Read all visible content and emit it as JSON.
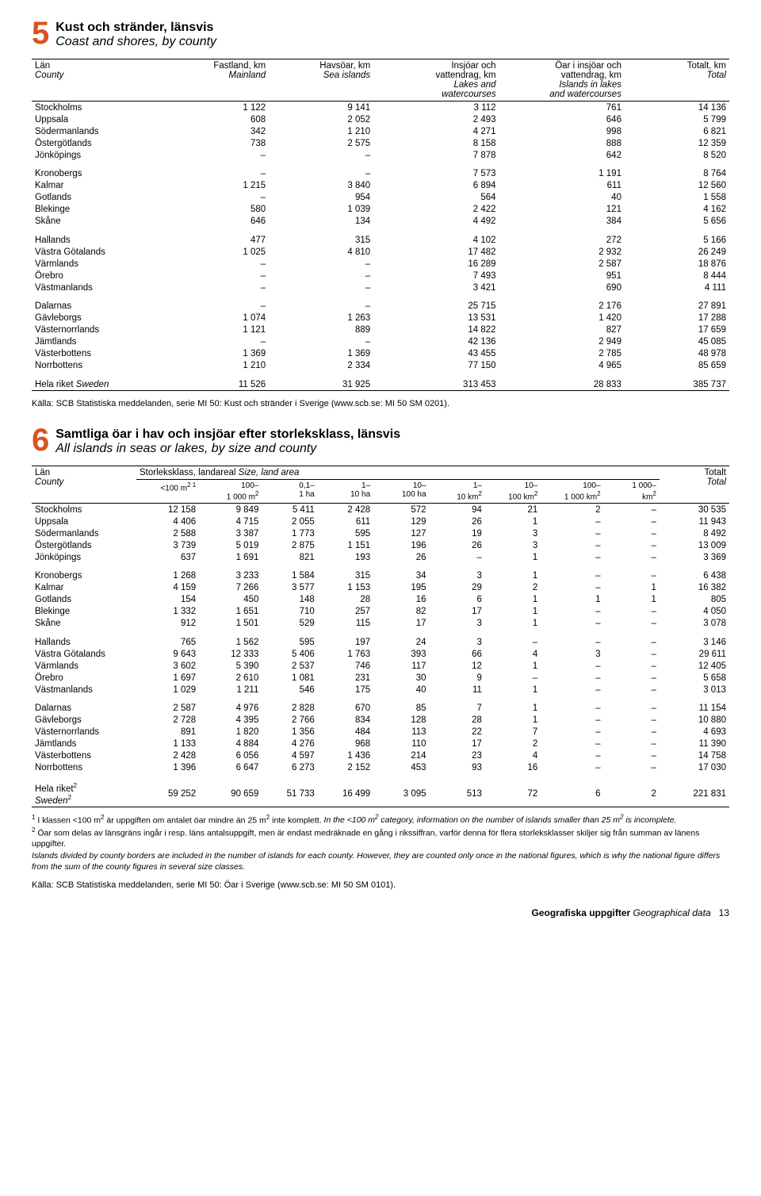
{
  "table5": {
    "number": "5",
    "title_sv": "Kust och stränder, länsvis",
    "title_en": "Coast and shores, by county",
    "headers": {
      "c0a": "Län",
      "c0b": "County",
      "c1a": "Fastland, km",
      "c1b": "Mainland",
      "c2a": "Havsöar, km",
      "c2b": "Sea islands",
      "c3a": "Insjöar och",
      "c3b": "vattendrag, km",
      "c3c": "Lakes and",
      "c3d": "watercourses",
      "c4a": "Öar i insjöar och",
      "c4b": "vattendrag, km",
      "c4c": "Islands in lakes",
      "c4d": "and watercourses",
      "c5a": "Totalt, km",
      "c5b": "Total"
    },
    "groups": [
      [
        {
          "n": "Stockholms",
          "v": [
            "1 122",
            "9 141",
            "3 112",
            "761",
            "14 136"
          ]
        },
        {
          "n": "Uppsala",
          "v": [
            "608",
            "2 052",
            "2 493",
            "646",
            "5 799"
          ]
        },
        {
          "n": "Södermanlands",
          "v": [
            "342",
            "1 210",
            "4 271",
            "998",
            "6 821"
          ]
        },
        {
          "n": "Östergötlands",
          "v": [
            "738",
            "2 575",
            "8 158",
            "888",
            "12 359"
          ]
        },
        {
          "n": "Jönköpings",
          "v": [
            "–",
            "–",
            "7 878",
            "642",
            "8 520"
          ]
        }
      ],
      [
        {
          "n": "Kronobergs",
          "v": [
            "–",
            "–",
            "7 573",
            "1 191",
            "8 764"
          ]
        },
        {
          "n": "Kalmar",
          "v": [
            "1 215",
            "3 840",
            "6 894",
            "611",
            "12 560"
          ]
        },
        {
          "n": "Gotlands",
          "v": [
            "–",
            "954",
            "564",
            "40",
            "1 558"
          ]
        },
        {
          "n": "Blekinge",
          "v": [
            "580",
            "1 039",
            "2 422",
            "121",
            "4 162"
          ]
        },
        {
          "n": "Skåne",
          "v": [
            "646",
            "134",
            "4 492",
            "384",
            "5 656"
          ]
        }
      ],
      [
        {
          "n": "Hallands",
          "v": [
            "477",
            "315",
            "4 102",
            "272",
            "5 166"
          ]
        },
        {
          "n": "Västra Götalands",
          "v": [
            "1 025",
            "4 810",
            "17 482",
            "2 932",
            "26 249"
          ]
        },
        {
          "n": "Värmlands",
          "v": [
            "–",
            "–",
            "16 289",
            "2 587",
            "18 876"
          ]
        },
        {
          "n": "Örebro",
          "v": [
            "–",
            "–",
            "7 493",
            "951",
            "8 444"
          ]
        },
        {
          "n": "Västmanlands",
          "v": [
            "–",
            "–",
            "3 421",
            "690",
            "4 111"
          ]
        }
      ],
      [
        {
          "n": "Dalarnas",
          "v": [
            "–",
            "–",
            "25 715",
            "2 176",
            "27 891"
          ]
        },
        {
          "n": "Gävleborgs",
          "v": [
            "1 074",
            "1 263",
            "13 531",
            "1 420",
            "17 288"
          ]
        },
        {
          "n": "Västernorrlands",
          "v": [
            "1 121",
            "889",
            "14 822",
            "827",
            "17 659"
          ]
        },
        {
          "n": "Jämtlands",
          "v": [
            "–",
            "–",
            "42 136",
            "2 949",
            "45 085"
          ]
        },
        {
          "n": "Västerbottens",
          "v": [
            "1 369",
            "1 369",
            "43 455",
            "2 785",
            "48 978"
          ]
        },
        {
          "n": "Norrbottens",
          "v": [
            "1 210",
            "2 334",
            "77 150",
            "4 965",
            "85 659"
          ]
        }
      ]
    ],
    "total": {
      "n": "Hela riket",
      "ni": "Sweden",
      "v": [
        "11 526",
        "31 925",
        "313 453",
        "28 833",
        "385 737"
      ]
    },
    "source": "Källa: SCB Statistiska meddelanden, serie MI 50: Kust och stränder i Sverige (www.scb.se: MI 50 SM 0201)."
  },
  "table6": {
    "number": "6",
    "title_sv": "Samtliga öar i hav och insjöar efter storleksklass, länsvis",
    "title_en": "All islands in seas or lakes, by size and county",
    "head": {
      "l0a": "Län",
      "l0b": "County",
      "span_sv": "Storleksklass, landareal",
      "span_en": "Size, land area",
      "ta": "Totalt",
      "tb": "Total",
      "c1a": "<100 m",
      "c1s": "2 1",
      "c2a": "100–",
      "c2b": "1 000 m",
      "c2s": "2",
      "c3a": "0,1–",
      "c3b": "1 ha",
      "c4a": "1–",
      "c4b": "10 ha",
      "c5a": "10–",
      "c5b": "100 ha",
      "c6a": "1–",
      "c6b": "10 km",
      "c6s": "2",
      "c7a": "10–",
      "c7b": "100 km",
      "c7s": "2",
      "c8a": "100–",
      "c8b": "1 000 km",
      "c8s": "2",
      "c9a": "1 000–",
      "c9b": "km",
      "c9s": "2"
    },
    "groups": [
      [
        {
          "n": "Stockholms",
          "v": [
            "12 158",
            "9 849",
            "5 411",
            "2 428",
            "572",
            "94",
            "21",
            "2",
            "–",
            "30 535"
          ]
        },
        {
          "n": "Uppsala",
          "v": [
            "4 406",
            "4 715",
            "2 055",
            "611",
            "129",
            "26",
            "1",
            "–",
            "–",
            "11 943"
          ]
        },
        {
          "n": "Södermanlands",
          "v": [
            "2 588",
            "3 387",
            "1 773",
            "595",
            "127",
            "19",
            "3",
            "–",
            "–",
            "8 492"
          ]
        },
        {
          "n": "Östergötlands",
          "v": [
            "3 739",
            "5 019",
            "2 875",
            "1 151",
            "196",
            "26",
            "3",
            "–",
            "–",
            "13 009"
          ]
        },
        {
          "n": "Jönköpings",
          "v": [
            "637",
            "1 691",
            "821",
            "193",
            "26",
            "–",
            "1",
            "–",
            "–",
            "3 369"
          ]
        }
      ],
      [
        {
          "n": "Kronobergs",
          "v": [
            "1 268",
            "3 233",
            "1 584",
            "315",
            "34",
            "3",
            "1",
            "–",
            "–",
            "6 438"
          ]
        },
        {
          "n": "Kalmar",
          "v": [
            "4 159",
            "7 266",
            "3 577",
            "1 153",
            "195",
            "29",
            "2",
            "–",
            "1",
            "16 382"
          ]
        },
        {
          "n": "Gotlands",
          "v": [
            "154",
            "450",
            "148",
            "28",
            "16",
            "6",
            "1",
            "1",
            "1",
            "805"
          ]
        },
        {
          "n": "Blekinge",
          "v": [
            "1 332",
            "1 651",
            "710",
            "257",
            "82",
            "17",
            "1",
            "–",
            "–",
            "4 050"
          ]
        },
        {
          "n": "Skåne",
          "v": [
            "912",
            "1 501",
            "529",
            "115",
            "17",
            "3",
            "1",
            "–",
            "–",
            "3 078"
          ]
        }
      ],
      [
        {
          "n": "Hallands",
          "v": [
            "765",
            "1 562",
            "595",
            "197",
            "24",
            "3",
            "–",
            "–",
            "–",
            "3 146"
          ]
        },
        {
          "n": "Västra Götalands",
          "v": [
            "9 643",
            "12 333",
            "5 406",
            "1 763",
            "393",
            "66",
            "4",
            "3",
            "–",
            "29 611"
          ]
        },
        {
          "n": "Värmlands",
          "v": [
            "3 602",
            "5 390",
            "2 537",
            "746",
            "117",
            "12",
            "1",
            "–",
            "–",
            "12 405"
          ]
        },
        {
          "n": "Örebro",
          "v": [
            "1 697",
            "2 610",
            "1 081",
            "231",
            "30",
            "9",
            "–",
            "–",
            "–",
            "5 658"
          ]
        },
        {
          "n": "Västmanlands",
          "v": [
            "1 029",
            "1 211",
            "546",
            "175",
            "40",
            "11",
            "1",
            "–",
            "–",
            "3 013"
          ]
        }
      ],
      [
        {
          "n": "Dalarnas",
          "v": [
            "2 587",
            "4 976",
            "2 828",
            "670",
            "85",
            "7",
            "1",
            "–",
            "–",
            "11 154"
          ]
        },
        {
          "n": "Gävleborgs",
          "v": [
            "2 728",
            "4 395",
            "2 766",
            "834",
            "128",
            "28",
            "1",
            "–",
            "–",
            "10 880"
          ]
        },
        {
          "n": "Västernorrlands",
          "v": [
            "891",
            "1 820",
            "1 356",
            "484",
            "113",
            "22",
            "7",
            "–",
            "–",
            "4 693"
          ]
        },
        {
          "n": "Jämtlands",
          "v": [
            "1 133",
            "4 884",
            "4 276",
            "968",
            "110",
            "17",
            "2",
            "–",
            "–",
            "11 390"
          ]
        },
        {
          "n": "Västerbottens",
          "v": [
            "2 428",
            "6 056",
            "4 597",
            "1 436",
            "214",
            "23",
            "4",
            "–",
            "–",
            "14 758"
          ]
        },
        {
          "n": "Norrbottens",
          "v": [
            "1 396",
            "6 647",
            "6 273",
            "2 152",
            "453",
            "93",
            "16",
            "–",
            "–",
            "17 030"
          ]
        }
      ]
    ],
    "total": {
      "n": "Hela riket",
      "ni": "Sweden",
      "sup": "2",
      "v": [
        "59 252",
        "90 659",
        "51 733",
        "16 499",
        "3 095",
        "513",
        "72",
        "6",
        "2",
        "221 831"
      ]
    },
    "footnotes": {
      "f1a": "I klassen <100 m",
      "f1sup1": "2",
      "f1b": " är uppgiften om antalet öar mindre än 25 m",
      "f1sup2": "2",
      "f1c": " inte komplett. ",
      "f1ia": "In the <100 m",
      "f1isup": "2",
      "f1ib": " category, information on the number of islands smaller than 25 m",
      "f1isup2": "2",
      "f1ic": " is incomplete.",
      "f2a": "Öar som delas av länsgräns ingår i resp. läns antalsuppgift, men är endast medräknade en gång i rikssiffran, varför denna för flera storleksklasser skiljer sig från summan av länens uppgifter.",
      "f2i": "Islands divided by county borders are included in the number of islands for each county. However, they are counted only once in the national figures, which is why the national figure differs from the sum of the county figures in several size classes."
    },
    "source": "Källa: SCB Statistiska meddelanden, serie MI 50: Öar i Sverige (www.scb.se: MI 50 SM 0101)."
  },
  "footer": {
    "a": "Geografiska uppgifter",
    "b": "Geographical data",
    "p": "13"
  }
}
